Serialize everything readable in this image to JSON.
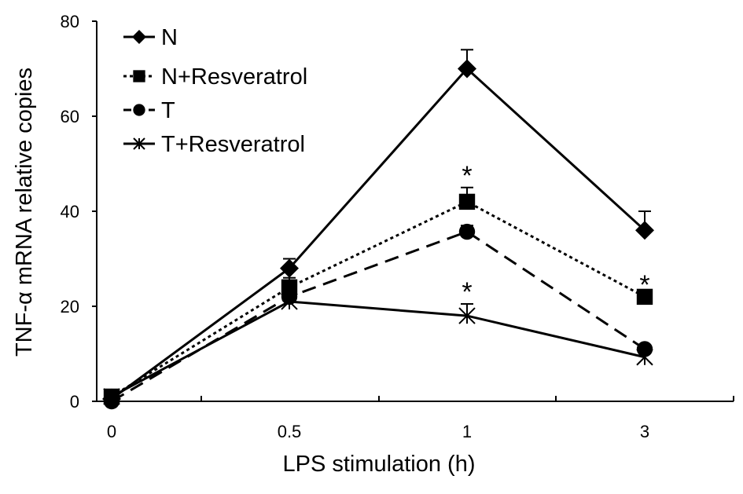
{
  "chart_data": {
    "type": "line",
    "title": "",
    "xlabel": "LPS stimulation (h)",
    "ylabel": "TNF-α mRNA relative copies",
    "categories": [
      "0",
      "0.5",
      "1",
      "3"
    ],
    "ylim": [
      0,
      80
    ],
    "yticks": [
      "0",
      "20",
      "40",
      "60",
      "80"
    ],
    "grid": false,
    "legend_position": "top-left",
    "series": [
      {
        "name": "N",
        "marker": "diamond",
        "dash": "solid",
        "values": [
          0.5,
          28,
          70,
          36
        ],
        "error_upper": [
          0,
          30,
          74,
          40
        ]
      },
      {
        "name": "N+Resveratrol",
        "marker": "square",
        "dash": "dotted",
        "values": [
          1,
          24,
          42,
          22
        ],
        "error_upper": [
          1,
          26,
          45,
          22
        ]
      },
      {
        "name": "T",
        "marker": "circle",
        "dash": "dashed",
        "values": [
          0,
          22,
          35.7,
          11
        ],
        "error_upper": [
          0,
          22,
          37,
          11
        ]
      },
      {
        "name": "T+Resveratrol",
        "marker": "x",
        "dash": "solid",
        "values": [
          1,
          21,
          18,
          9.3
        ],
        "error_upper": [
          1,
          21,
          20.5,
          9.3
        ]
      }
    ],
    "annotations": [
      {
        "text": "*",
        "category": "1",
        "series": "N+Resveratrol"
      },
      {
        "text": "*",
        "category": "1",
        "series": "T+Resveratrol"
      },
      {
        "text": "*",
        "category": "3",
        "series": "N+Resveratrol"
      }
    ]
  }
}
